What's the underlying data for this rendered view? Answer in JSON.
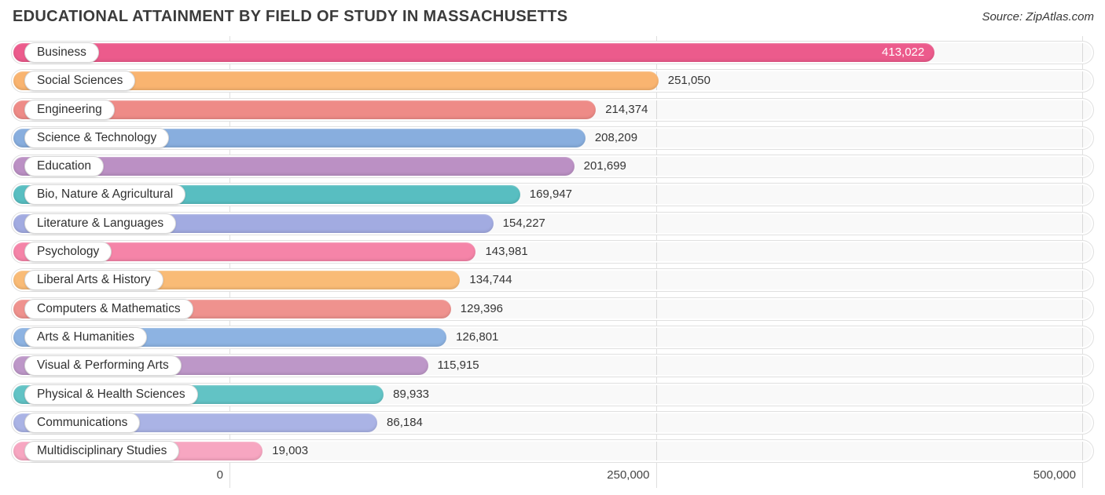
{
  "header": {
    "title": "EDUCATIONAL ATTAINMENT BY FIELD OF STUDY IN MASSACHUSETTS",
    "source": "Source: ZipAtlas.com"
  },
  "chart_data": {
    "type": "bar",
    "orientation": "horizontal",
    "title": "EDUCATIONAL ATTAINMENT BY FIELD OF STUDY IN MASSACHUSETTS",
    "xlabel": "",
    "ylabel": "",
    "xlim": [
      0,
      500000
    ],
    "grid": true,
    "categories": [
      "Business",
      "Social Sciences",
      "Engineering",
      "Science & Technology",
      "Education",
      "Bio, Nature & Agricultural",
      "Literature & Languages",
      "Psychology",
      "Liberal Arts & History",
      "Computers & Mathematics",
      "Arts & Humanities",
      "Visual & Performing Arts",
      "Physical & Health Sciences",
      "Communications",
      "Multidisciplinary Studies"
    ],
    "values": [
      413022,
      251050,
      214374,
      208209,
      201699,
      169947,
      154227,
      143981,
      134744,
      129396,
      126801,
      115915,
      89933,
      86184,
      19003
    ],
    "value_labels": [
      "413,022",
      "251,050",
      "214,374",
      "208,209",
      "201,699",
      "169,947",
      "154,227",
      "143,981",
      "134,744",
      "129,396",
      "126,801",
      "115,915",
      "89,933",
      "86,184",
      "19,003"
    ],
    "value_label_inside": [
      true,
      false,
      false,
      false,
      false,
      false,
      false,
      false,
      false,
      false,
      false,
      false,
      false,
      false,
      false
    ],
    "colors": [
      "#ec5b8c",
      "#f9b470",
      "#ee8b87",
      "#88aede",
      "#bb90c4",
      "#58bec1",
      "#a2abe1",
      "#f584a8",
      "#f9bb76",
      "#ef928e",
      "#8db3e2",
      "#bd97c8",
      "#62c3c5",
      "#aab3e5",
      "#f7a6c1"
    ],
    "x_ticks": [
      {
        "value": 0,
        "label": "0"
      },
      {
        "value": 250000,
        "label": "250,000"
      },
      {
        "value": 500000,
        "label": "500,000"
      }
    ]
  }
}
